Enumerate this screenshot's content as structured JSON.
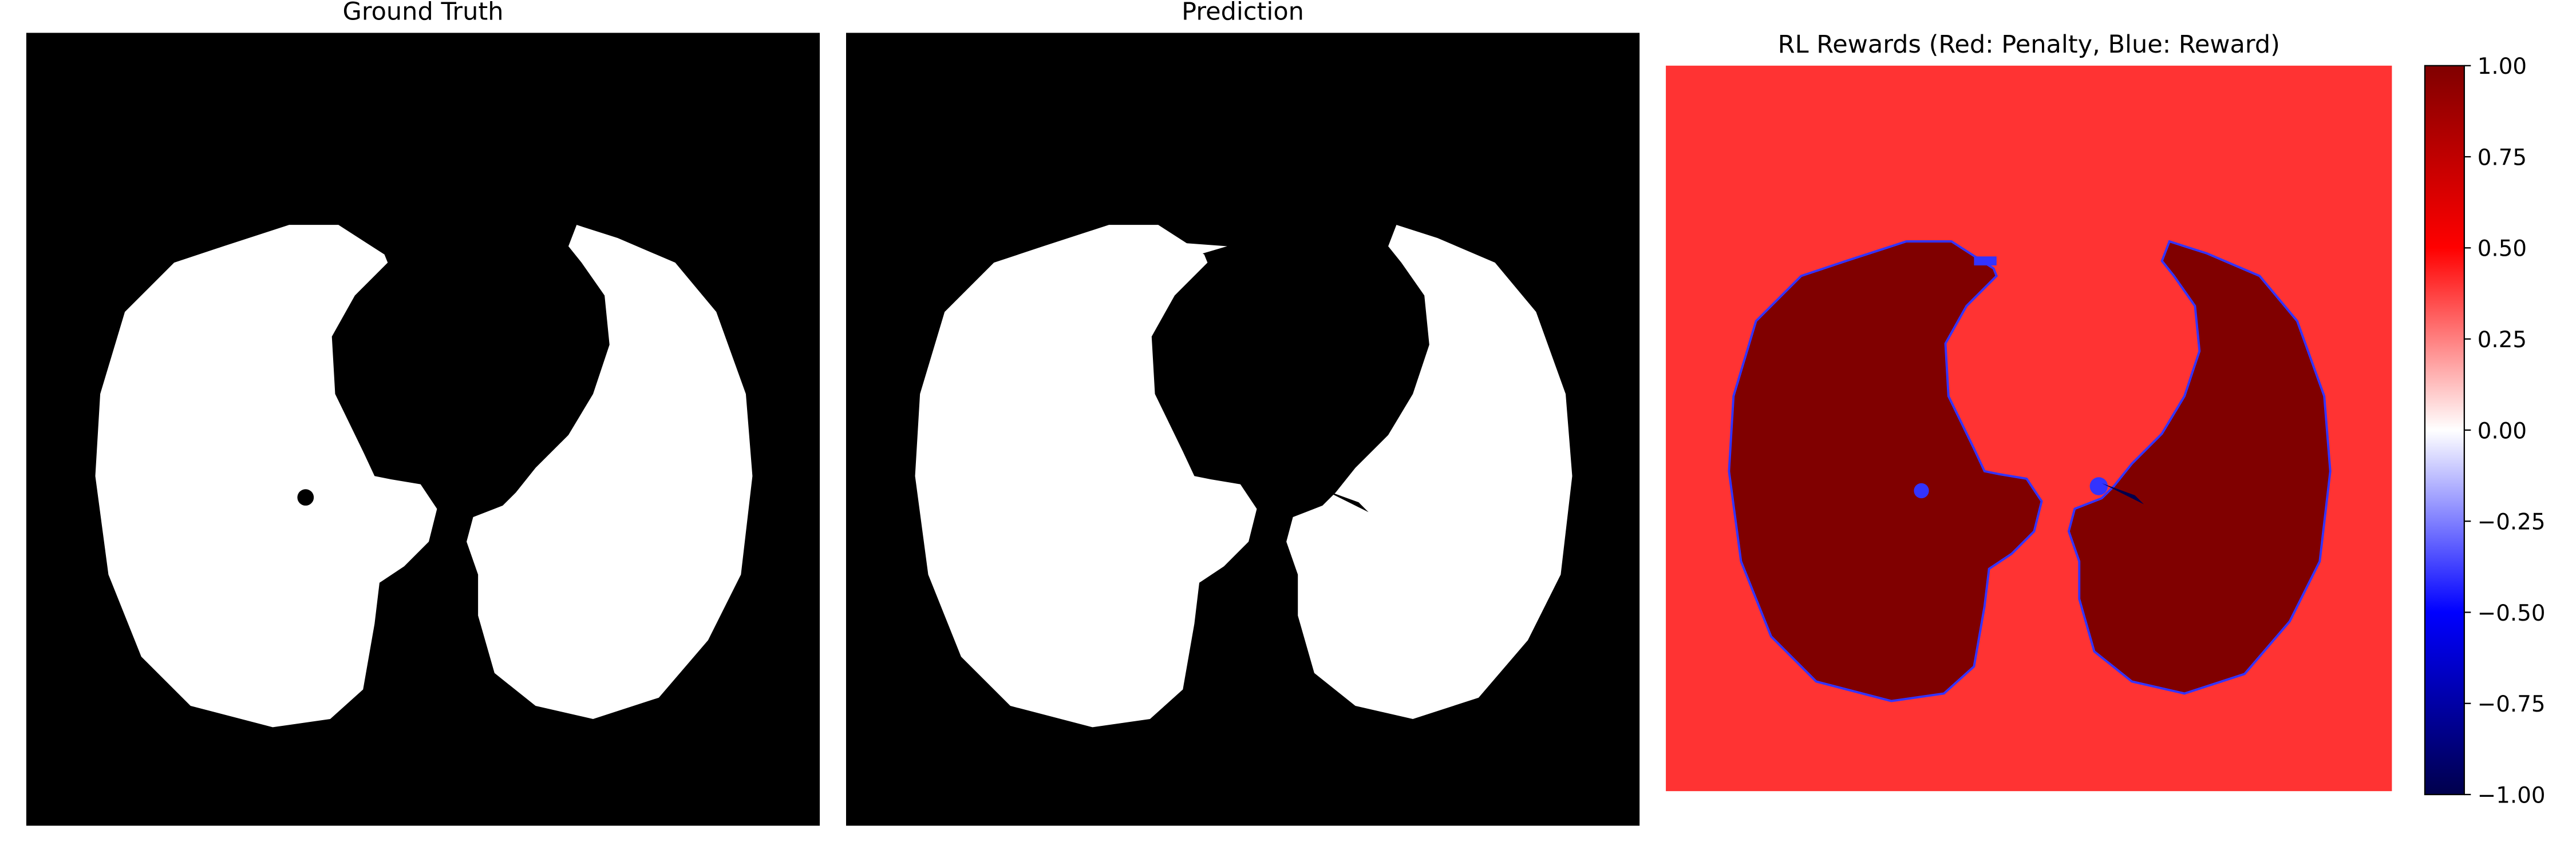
{
  "chart_data": [
    {
      "type": "image",
      "title": "Ground Truth"
    },
    {
      "type": "image",
      "title": "Prediction"
    },
    {
      "type": "heatmap",
      "title": "RL Rewards (Red: Penalty, Blue: Reward)",
      "colorbar": {
        "lim": [
          -1,
          1
        ],
        "ticks": [
          {
            "value": 1,
            "label": "1.00"
          },
          {
            "value": 0.75,
            "label": "0.75"
          },
          {
            "value": 0.5,
            "label": "0.50"
          },
          {
            "value": 0.25,
            "label": "0.25"
          },
          {
            "value": 0,
            "label": "0.00"
          },
          {
            "value": -0.25,
            "label": "−0.25"
          },
          {
            "value": -0.5,
            "label": "−0.50"
          },
          {
            "value": -0.75,
            "label": "−0.75"
          },
          {
            "value": -1,
            "label": "−1.00"
          }
        ]
      }
    }
  ]
}
